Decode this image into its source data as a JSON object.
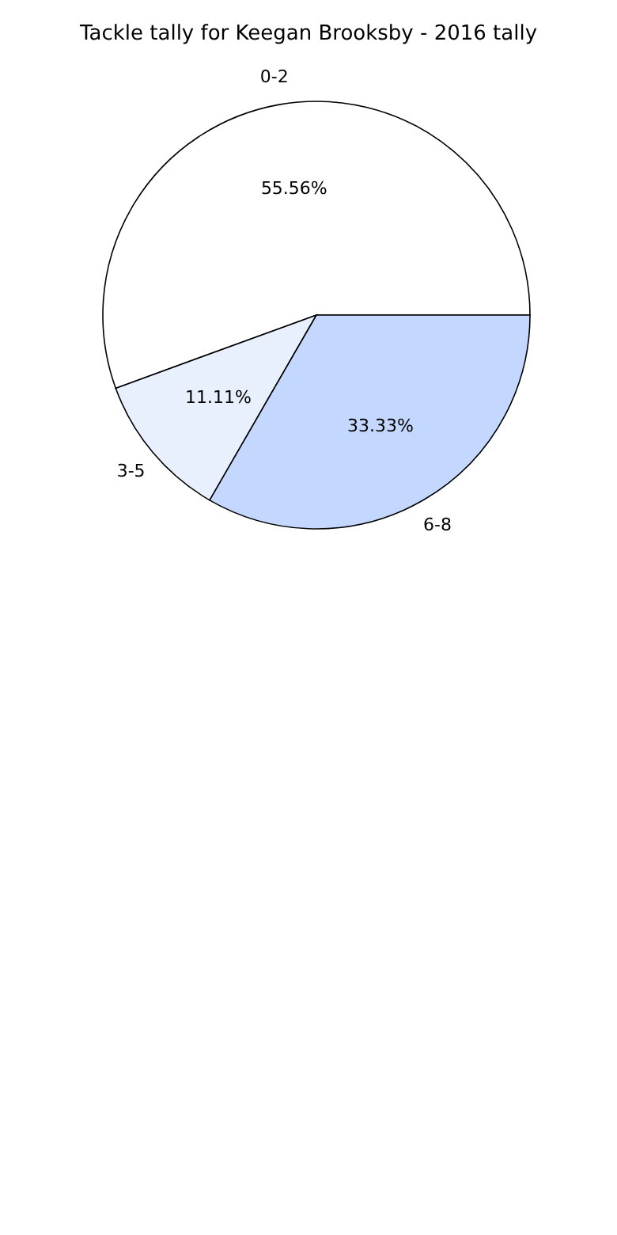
{
  "chart_data": {
    "type": "pie",
    "title": "Tackle tally for Keegan Brooksby - 2016 tally",
    "categories": [
      "0-2",
      "3-5",
      "6-8"
    ],
    "values": [
      55.56,
      11.11,
      33.33
    ],
    "value_labels": [
      "55.56%",
      "11.11%",
      "33.33%"
    ],
    "colors": [
      "#ffffff",
      "#e8f0fe",
      "#c4d8ff"
    ]
  }
}
